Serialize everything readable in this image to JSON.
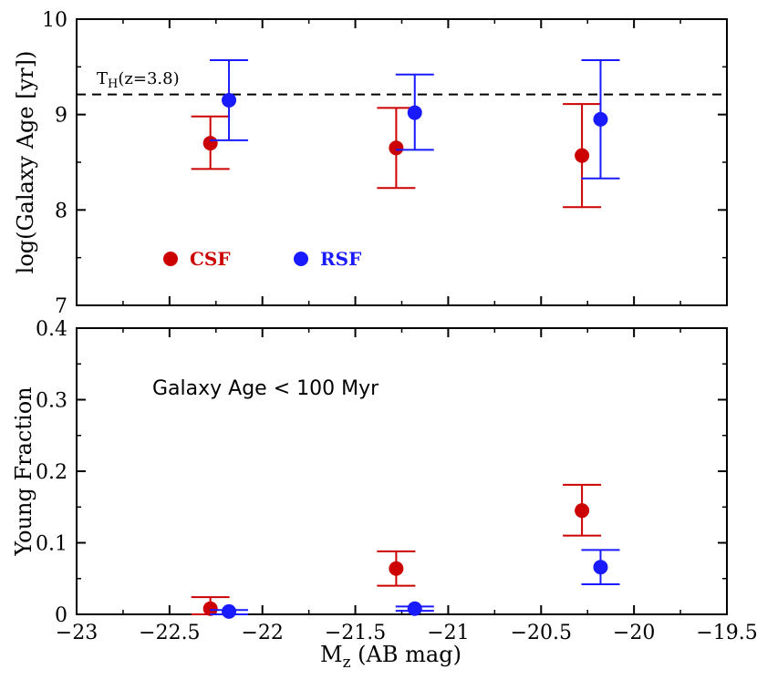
{
  "chart_data": [
    {
      "type": "scatter",
      "panel": "top",
      "ylabel": "log(Galaxy Age [yr])",
      "xlim": [
        -23,
        -19.5
      ],
      "ylim": [
        7,
        10
      ],
      "yticks": [
        7,
        8,
        9,
        10
      ],
      "ytick_labels": [
        "7",
        "8",
        "9",
        "10"
      ],
      "reference_line": {
        "y": 9.21,
        "label_main": "T",
        "label_sub": "H",
        "label_rest": "(z=3.8)"
      },
      "legend": [
        {
          "name": "CSF",
          "color": "#cc0000"
        },
        {
          "name": "RSF",
          "color": "#1a1aff"
        }
      ],
      "series": [
        {
          "name": "CSF",
          "color": "#cc0000",
          "points": [
            {
              "x": -22.28,
              "y": 8.7,
              "ylo": 8.43,
              "yhi": 8.98
            },
            {
              "x": -21.28,
              "y": 8.65,
              "ylo": 8.23,
              "yhi": 9.07
            },
            {
              "x": -20.28,
              "y": 8.57,
              "ylo": 8.03,
              "yhi": 9.11
            }
          ]
        },
        {
          "name": "RSF",
          "color": "#1a1aff",
          "points": [
            {
              "x": -22.18,
              "y": 9.15,
              "ylo": 8.73,
              "yhi": 9.57
            },
            {
              "x": -21.18,
              "y": 9.02,
              "ylo": 8.63,
              "yhi": 9.42
            },
            {
              "x": -20.18,
              "y": 8.95,
              "ylo": 8.33,
              "yhi": 9.57
            }
          ]
        }
      ]
    },
    {
      "type": "scatter",
      "panel": "bottom",
      "ylabel": "Young Fraction",
      "xlabel_main": "M",
      "xlabel_sub": "z",
      "xlabel_rest": " (AB mag)",
      "xlim": [
        -23,
        -19.5
      ],
      "ylim": [
        0,
        0.4
      ],
      "xticks": [
        -23,
        -22.5,
        -22,
        -21.5,
        -21,
        -20.5,
        -20,
        -19.5
      ],
      "xtick_labels": [
        "−23",
        "−22.5",
        "−22",
        "−21.5",
        "−21",
        "−20.5",
        "−20",
        "−19.5"
      ],
      "yticks": [
        0,
        0.1,
        0.2,
        0.3,
        0.4
      ],
      "ytick_labels": [
        "0",
        "0.1",
        "0.2",
        "0.3",
        "0.4"
      ],
      "annotation": "Galaxy Age < 100 Myr",
      "series": [
        {
          "name": "CSF",
          "color": "#cc0000",
          "points": [
            {
              "x": -22.28,
              "y": 0.008,
              "ylo": 0.0,
              "yhi": 0.024
            },
            {
              "x": -21.28,
              "y": 0.064,
              "ylo": 0.04,
              "yhi": 0.088
            },
            {
              "x": -20.28,
              "y": 0.145,
              "ylo": 0.11,
              "yhi": 0.181
            }
          ]
        },
        {
          "name": "RSF",
          "color": "#1a1aff",
          "points": [
            {
              "x": -22.18,
              "y": 0.004,
              "ylo": 0.0,
              "yhi": 0.006
            },
            {
              "x": -21.18,
              "y": 0.008,
              "ylo": 0.005,
              "yhi": 0.011
            },
            {
              "x": -20.18,
              "y": 0.066,
              "ylo": 0.042,
              "yhi": 0.09
            }
          ]
        }
      ]
    }
  ]
}
